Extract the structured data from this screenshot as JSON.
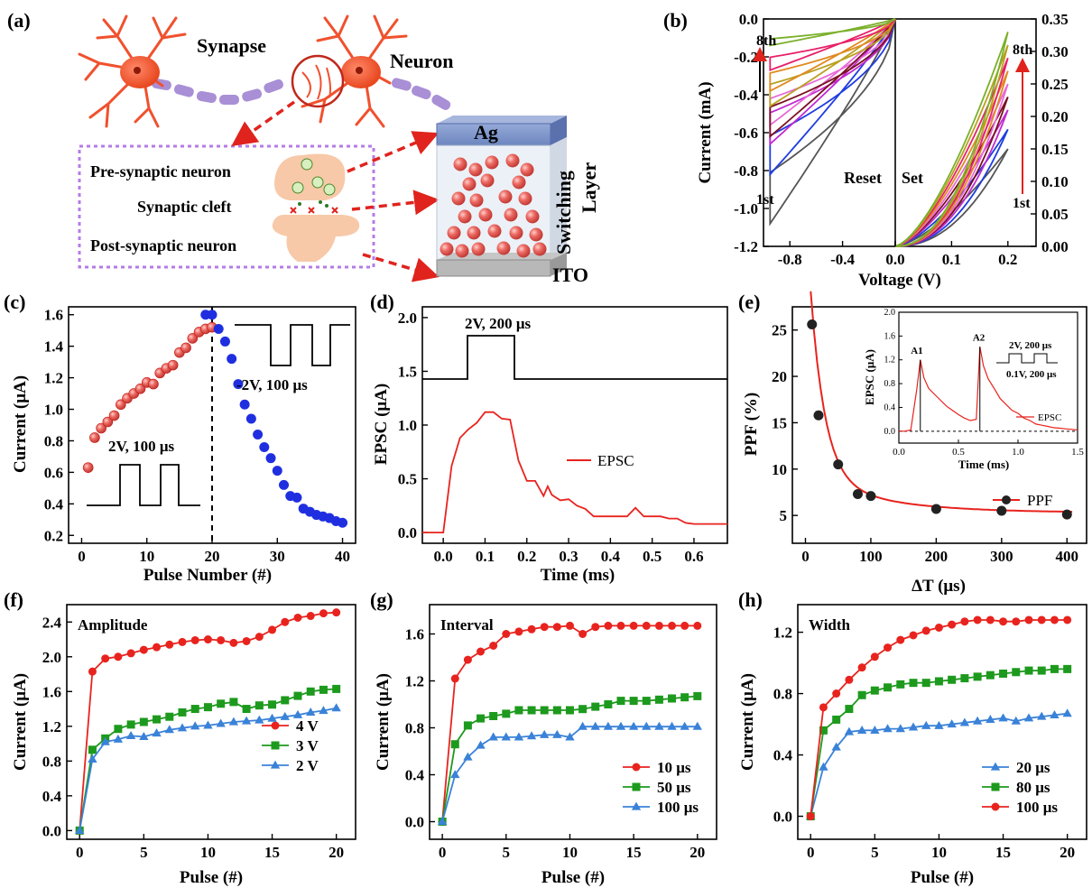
{
  "figure": {
    "panel_labels": [
      "(a)",
      "(b)",
      "(c)",
      "(d)",
      "(e)",
      "(f)",
      "(g)",
      "(h)"
    ]
  },
  "schematic": {
    "synapse_label": "Synapse",
    "neuron_label": "Neuron",
    "pre_label": "Pre-synaptic neuron",
    "cleft_label": "Synaptic cleft",
    "post_label": "Post-synaptic neuron",
    "top_electrode": "Ag",
    "switching_label": "Switching",
    "layer_label": "Layer",
    "bottom_electrode": "ITO",
    "colors": {
      "neuron": "#f0512e",
      "axon": "#a98fd6",
      "dashed_box": "#b57ce6",
      "arrow": "#e0231d",
      "sphere": "#e8645d",
      "ag": "#7f95c8"
    }
  },
  "chart_data": [
    {
      "panel": "(b)",
      "type": "line",
      "xlabel": "Voltage (V)",
      "ylabel": "Current (mA)",
      "left": {
        "xlim": [
          -1.0,
          0.0
        ],
        "ylim": [
          -1.2,
          0.0
        ],
        "xticks": [
          "-0.8",
          "-0.4",
          "0.0"
        ],
        "yticks": [
          "0.0",
          "-0.2",
          "-0.4",
          "-0.6",
          "-0.8",
          "-1.0",
          "-1.2"
        ],
        "label": "Reset",
        "first": "1st",
        "last": "8th"
      },
      "right": {
        "xlim": [
          0.0,
          0.25
        ],
        "ylim": [
          0.0,
          0.35
        ],
        "xticks": [
          "0.0",
          "0.1",
          "0.2"
        ],
        "yticks": [
          "0.35",
          "0.30",
          "0.25",
          "0.20",
          "0.15",
          "0.10",
          "0.05",
          "0.00"
        ],
        "label": "Set",
        "first": "1st",
        "last": "8th"
      },
      "reset_loops": [
        {
          "color": "#555555",
          "min": -1.08
        },
        {
          "color": "#1f3de0",
          "min": -0.82
        },
        {
          "color": "#c02ad0",
          "min": -0.66
        },
        {
          "color": "#e86ad8",
          "min": -0.56
        },
        {
          "color": "#7a1020",
          "min": -0.62
        },
        {
          "color": "#b9a020",
          "min": -0.46
        },
        {
          "color": "#e08a20",
          "min": -0.38
        },
        {
          "color": "#e8206a",
          "min": -0.27
        },
        {
          "color": "#7ab02a",
          "min": -0.14
        }
      ],
      "set_loops": [
        {
          "color": "#555555",
          "peak": 0.15
        },
        {
          "color": "#1f3de0",
          "peak": 0.18
        },
        {
          "color": "#c02ad0",
          "peak": 0.21
        },
        {
          "color": "#7a1020",
          "peak": 0.23
        },
        {
          "color": "#e86ad8",
          "peak": 0.25
        },
        {
          "color": "#e08a20",
          "peak": 0.27
        },
        {
          "color": "#e8206a",
          "peak": 0.29
        },
        {
          "color": "#b9a020",
          "peak": 0.31
        },
        {
          "color": "#7ab02a",
          "peak": 0.33
        }
      ]
    },
    {
      "panel": "(c)",
      "type": "scatter",
      "xlabel": "Pulse Number (#)",
      "ylabel": "Current (μA)",
      "xlim": [
        -2,
        42
      ],
      "ylim": [
        0.15,
        1.65
      ],
      "xticks": [
        0,
        10,
        20,
        30,
        40
      ],
      "yticks": [
        0.2,
        0.4,
        0.6,
        0.8,
        1.0,
        1.2,
        1.4,
        1.6
      ],
      "pot_label": "2V, 100 μs",
      "dep_label": "-2V, 100 μs",
      "potentiation": {
        "color": "#e8231e",
        "x": [
          1,
          2,
          3,
          4,
          5,
          6,
          7,
          8,
          9,
          10,
          11,
          12,
          13,
          14,
          15,
          16,
          17,
          18,
          19,
          20
        ],
        "y": [
          0.63,
          0.82,
          0.88,
          0.92,
          0.96,
          1.03,
          1.07,
          1.1,
          1.13,
          1.17,
          1.16,
          1.23,
          1.26,
          1.28,
          1.36,
          1.39,
          1.45,
          1.49,
          1.51,
          1.52
        ]
      },
      "depression": {
        "color": "#1f2fe0",
        "x": [
          19,
          20,
          21,
          22,
          23,
          24,
          25,
          26,
          27,
          28,
          29,
          30,
          31,
          32,
          33,
          34,
          35,
          36,
          37,
          38,
          39,
          40
        ],
        "y": [
          1.6,
          1.6,
          1.51,
          1.43,
          1.32,
          1.16,
          1.03,
          0.94,
          0.84,
          0.76,
          0.69,
          0.61,
          0.52,
          0.45,
          0.44,
          0.37,
          0.35,
          0.33,
          0.32,
          0.31,
          0.29,
          0.28
        ]
      }
    },
    {
      "panel": "(d)",
      "type": "line",
      "xlabel": "Time (ms)",
      "ylabel": "EPSC (μA)",
      "xlim": [
        -0.05,
        0.68
      ],
      "ylim": [
        -0.1,
        2.1
      ],
      "xticks": [
        0.0,
        0.1,
        0.2,
        0.3,
        0.4,
        0.5,
        0.6
      ],
      "yticks": [
        0.0,
        0.5,
        1.0,
        1.5,
        2.0
      ],
      "pulse_label": "2V, 200 μs",
      "legend": "EPSC",
      "series": {
        "color": "#e8231e",
        "x": [
          -0.05,
          0.0,
          0.02,
          0.04,
          0.06,
          0.08,
          0.1,
          0.12,
          0.14,
          0.16,
          0.18,
          0.2,
          0.22,
          0.24,
          0.25,
          0.26,
          0.28,
          0.3,
          0.32,
          0.34,
          0.36,
          0.38,
          0.4,
          0.42,
          0.44,
          0.46,
          0.48,
          0.5,
          0.52,
          0.54,
          0.56,
          0.58,
          0.6,
          0.62,
          0.64,
          0.66,
          0.68
        ],
        "y": [
          0.0,
          0.0,
          0.62,
          0.88,
          0.96,
          1.02,
          1.12,
          1.12,
          1.06,
          1.05,
          0.67,
          0.48,
          0.48,
          0.34,
          0.43,
          0.35,
          0.3,
          0.31,
          0.25,
          0.22,
          0.15,
          0.15,
          0.15,
          0.15,
          0.15,
          0.23,
          0.15,
          0.15,
          0.15,
          0.13,
          0.13,
          0.09,
          0.08,
          0.08,
          0.08,
          0.08,
          0.08
        ]
      }
    },
    {
      "panel": "(e)",
      "type": "scatter",
      "xlabel": "ΔT (μs)",
      "ylabel": "PPF (%)",
      "xlim": [
        -20,
        430
      ],
      "ylim": [
        2,
        27.5
      ],
      "xticks": [
        0,
        100,
        200,
        300,
        400
      ],
      "yticks": [
        5,
        10,
        15,
        20,
        25
      ],
      "legend": "PPF",
      "points": {
        "x": [
          10,
          20,
          50,
          80,
          100,
          200,
          300,
          400
        ],
        "y": [
          25.6,
          15.8,
          10.5,
          7.3,
          7.1,
          5.7,
          5.5,
          5.1
        ]
      },
      "fit_color": "#e8231e",
      "inset": {
        "xlabel": "Time (ms)",
        "ylabel": "EPSC (μA)",
        "xlim": [
          0.0,
          1.5
        ],
        "ylim": [
          -0.2,
          2.0
        ],
        "xticks": [
          "0.0",
          "0.5",
          "1.0",
          "1.5"
        ],
        "yticks": [
          "0.0",
          "0.4",
          "0.8",
          "1.2",
          "1.6",
          "2.0"
        ],
        "legend": "EPSC",
        "a1": "A1",
        "a2": "A2",
        "pulse_label_1": "2V, 200 μs",
        "pulse_label_2": "0.1V, 200 μs",
        "x": [
          0.0,
          0.05,
          0.1,
          0.15,
          0.18,
          0.21,
          0.25,
          0.3,
          0.35,
          0.4,
          0.45,
          0.5,
          0.55,
          0.6,
          0.65,
          0.68,
          0.71,
          0.75,
          0.8,
          0.85,
          0.9,
          0.95,
          1.0,
          1.05,
          1.1,
          1.15,
          1.2,
          1.25,
          1.3,
          1.35,
          1.4,
          1.45,
          1.5
        ],
        "y": [
          0.0,
          0.0,
          0.02,
          0.7,
          1.2,
          0.9,
          0.72,
          0.62,
          0.52,
          0.42,
          0.35,
          0.28,
          0.22,
          0.18,
          0.2,
          1.42,
          1.1,
          0.88,
          0.72,
          0.55,
          0.45,
          0.35,
          0.3,
          0.22,
          0.18,
          0.12,
          0.1,
          0.08,
          0.06,
          0.05,
          0.04,
          0.03,
          0.02
        ]
      }
    },
    {
      "panel": "(f)",
      "type": "line",
      "title": "Amplitude",
      "xlabel": "Pulse (#)",
      "ylabel": "Current (μA)",
      "xlim": [
        -1,
        21.5
      ],
      "ylim": [
        -0.1,
        2.6
      ],
      "xticks": [
        0,
        5,
        10,
        15,
        20
      ],
      "yticks": [
        0.0,
        0.4,
        0.8,
        1.2,
        1.6,
        2.0,
        2.4
      ],
      "series": [
        {
          "name": "4 V",
          "color": "#e8231e",
          "marker": "circle",
          "values": [
            0.0,
            1.83,
            1.98,
            2.0,
            2.04,
            2.08,
            2.11,
            2.14,
            2.17,
            2.19,
            2.2,
            2.19,
            2.16,
            2.18,
            2.23,
            2.31,
            2.4,
            2.45,
            2.47,
            2.5,
            2.51
          ]
        },
        {
          "name": "3 V",
          "color": "#1d9a1d",
          "marker": "square",
          "values": [
            0.0,
            0.93,
            1.06,
            1.17,
            1.22,
            1.25,
            1.28,
            1.31,
            1.36,
            1.4,
            1.42,
            1.46,
            1.48,
            1.4,
            1.44,
            1.45,
            1.5,
            1.55,
            1.6,
            1.62,
            1.63
          ]
        },
        {
          "name": "2 V",
          "color": "#3a82d8",
          "marker": "triangle",
          "values": [
            0.0,
            0.82,
            1.02,
            1.05,
            1.09,
            1.08,
            1.12,
            1.16,
            1.18,
            1.2,
            1.21,
            1.23,
            1.25,
            1.26,
            1.27,
            1.29,
            1.31,
            1.33,
            1.36,
            1.38,
            1.41
          ]
        }
      ]
    },
    {
      "panel": "(g)",
      "type": "line",
      "title": "Interval",
      "xlabel": "Pulse (#)",
      "ylabel": "Current (μA)",
      "xlim": [
        -1,
        21.5
      ],
      "ylim": [
        -0.15,
        1.85
      ],
      "xticks": [
        0,
        5,
        10,
        15,
        20
      ],
      "yticks": [
        0.0,
        0.4,
        0.8,
        1.2,
        1.6
      ],
      "series": [
        {
          "name": "10 μs",
          "color": "#e8231e",
          "marker": "circle",
          "values": [
            0.0,
            1.22,
            1.38,
            1.45,
            1.5,
            1.6,
            1.62,
            1.64,
            1.66,
            1.66,
            1.67,
            1.6,
            1.66,
            1.67,
            1.67,
            1.67,
            1.67,
            1.67,
            1.67,
            1.67,
            1.67
          ]
        },
        {
          "name": "50 μs",
          "color": "#1d9a1d",
          "marker": "square",
          "values": [
            0.0,
            0.66,
            0.82,
            0.88,
            0.9,
            0.92,
            0.95,
            0.95,
            0.95,
            0.95,
            0.95,
            0.96,
            0.98,
            1.0,
            1.03,
            1.03,
            1.03,
            1.04,
            1.05,
            1.06,
            1.07
          ]
        },
        {
          "name": "100 μs",
          "color": "#3a82d8",
          "marker": "triangle",
          "values": [
            0.0,
            0.4,
            0.55,
            0.65,
            0.72,
            0.72,
            0.72,
            0.73,
            0.74,
            0.74,
            0.72,
            0.81,
            0.81,
            0.81,
            0.81,
            0.81,
            0.81,
            0.81,
            0.81,
            0.81,
            0.81
          ]
        }
      ]
    },
    {
      "panel": "(h)",
      "type": "line",
      "title": "Width",
      "xlabel": "Pulse (#)",
      "ylabel": "Current (μA)",
      "xlim": [
        -1,
        21.5
      ],
      "ylim": [
        -0.15,
        1.38
      ],
      "xticks": [
        0,
        5,
        10,
        15,
        20
      ],
      "yticks": [
        0.0,
        0.4,
        0.8,
        1.2
      ],
      "series": [
        {
          "name": "20 μs",
          "color": "#3a82d8",
          "marker": "triangle",
          "values": [
            0.0,
            0.32,
            0.45,
            0.55,
            0.56,
            0.56,
            0.57,
            0.57,
            0.58,
            0.59,
            0.59,
            0.6,
            0.61,
            0.62,
            0.63,
            0.64,
            0.62,
            0.64,
            0.65,
            0.66,
            0.67
          ]
        },
        {
          "name": "80 μs",
          "color": "#1d9a1d",
          "marker": "square",
          "values": [
            0.0,
            0.56,
            0.63,
            0.7,
            0.79,
            0.82,
            0.84,
            0.86,
            0.87,
            0.87,
            0.88,
            0.89,
            0.9,
            0.91,
            0.92,
            0.93,
            0.94,
            0.95,
            0.95,
            0.96,
            0.96
          ]
        },
        {
          "name": "100 μs",
          "color": "#e8231e",
          "marker": "circle",
          "values": [
            0.0,
            0.71,
            0.8,
            0.89,
            0.97,
            1.04,
            1.1,
            1.15,
            1.18,
            1.21,
            1.23,
            1.25,
            1.27,
            1.28,
            1.28,
            1.27,
            1.27,
            1.28,
            1.28,
            1.28,
            1.28
          ]
        }
      ]
    }
  ]
}
